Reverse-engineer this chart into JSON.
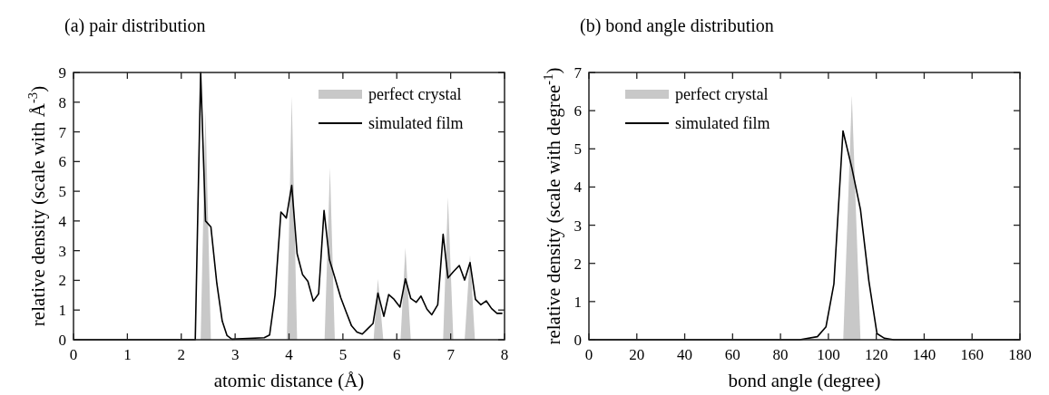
{
  "chart_data": [
    {
      "type": "line",
      "title": "(a) pair distribution",
      "xlabel": "atomic distance (Å)",
      "ylabel": "relative density (scale with Å$^{-3}$)",
      "xlim": [
        0,
        8
      ],
      "ylim": [
        0,
        9
      ],
      "xticks": [
        0,
        1,
        2,
        3,
        4,
        5,
        6,
        7,
        8
      ],
      "yticks": [
        0,
        1,
        2,
        3,
        4,
        5,
        6,
        7,
        8,
        9
      ],
      "legend": "top right",
      "grid": false,
      "series": [
        {
          "name": "perfect crystal",
          "type": "area",
          "color": "#c8c8c8",
          "x": [
            2.36,
            2.45,
            2.55,
            3.96,
            4.05,
            4.15,
            4.66,
            4.76,
            4.85,
            5.57,
            5.65,
            5.75,
            6.07,
            6.16,
            6.26,
            6.86,
            6.95,
            7.05,
            7.26,
            7.36,
            7.45
          ],
          "values": [
            0,
            7.7,
            0,
            0,
            8.2,
            0,
            0,
            5.8,
            0,
            0,
            2.05,
            0,
            0,
            3.1,
            0,
            0,
            4.8,
            0,
            0,
            2.85,
            0
          ]
        },
        {
          "name": "simulated film",
          "color": "#000000",
          "x": [
            0,
            2.26,
            2.36,
            2.45,
            2.55,
            2.66,
            2.76,
            2.85,
            2.94,
            3.54,
            3.64,
            3.74,
            3.85,
            3.95,
            4.05,
            4.15,
            4.25,
            4.35,
            4.45,
            4.55,
            4.65,
            4.75,
            4.85,
            4.96,
            5.06,
            5.16,
            5.26,
            5.36,
            5.46,
            5.56,
            5.65,
            5.76,
            5.85,
            5.95,
            6.06,
            6.16,
            6.26,
            6.36,
            6.45,
            6.56,
            6.65,
            6.76,
            6.86,
            6.95,
            7.06,
            7.16,
            7.26,
            7.36,
            7.46,
            7.56,
            7.66,
            7.76,
            7.86,
            7.96
          ],
          "values": [
            0,
            0,
            9.0,
            4.0,
            3.8,
            1.9,
            0.63,
            0.14,
            0.02,
            0.07,
            0.16,
            1.5,
            4.3,
            4.1,
            5.2,
            2.9,
            2.2,
            1.97,
            1.3,
            1.55,
            4.35,
            2.7,
            2.1,
            1.42,
            0.94,
            0.47,
            0.26,
            0.19,
            0.37,
            0.55,
            1.57,
            0.79,
            1.52,
            1.36,
            1.1,
            2.05,
            1.39,
            1.26,
            1.47,
            1.03,
            0.84,
            1.18,
            3.55,
            2.08,
            2.31,
            2.5,
            2.01,
            2.6,
            1.36,
            1.18,
            1.31,
            1.05,
            0.89,
            0.89
          ]
        }
      ]
    },
    {
      "type": "line",
      "title": "(b) bond angle distribution",
      "xlabel": "bond angle (degree)",
      "ylabel": "relative density (scale with degree$^{-1}$)",
      "xlim": [
        0,
        180
      ],
      "ylim": [
        0,
        7
      ],
      "xticks": [
        0,
        20,
        40,
        60,
        80,
        100,
        120,
        140,
        160,
        180
      ],
      "yticks": [
        0,
        1,
        2,
        3,
        4,
        5,
        6,
        7
      ],
      "legend": "top left",
      "grid": false,
      "series": [
        {
          "name": "perfect crystal",
          "type": "area",
          "color": "#c8c8c8",
          "x": [
            106.2,
            109.8,
            113.4
          ],
          "values": [
            0,
            6.4,
            0
          ]
        },
        {
          "name": "simulated film",
          "color": "#000000",
          "x": [
            0,
            88,
            95.4,
            99,
            102.3,
            106.1,
            109.8,
            113.4,
            116.9,
            120.3,
            123.4,
            127.3,
            180
          ],
          "values": [
            0,
            0,
            0.08,
            0.34,
            1.46,
            5.47,
            4.5,
            3.41,
            1.54,
            0.16,
            0.04,
            0,
            0
          ]
        }
      ]
    }
  ]
}
